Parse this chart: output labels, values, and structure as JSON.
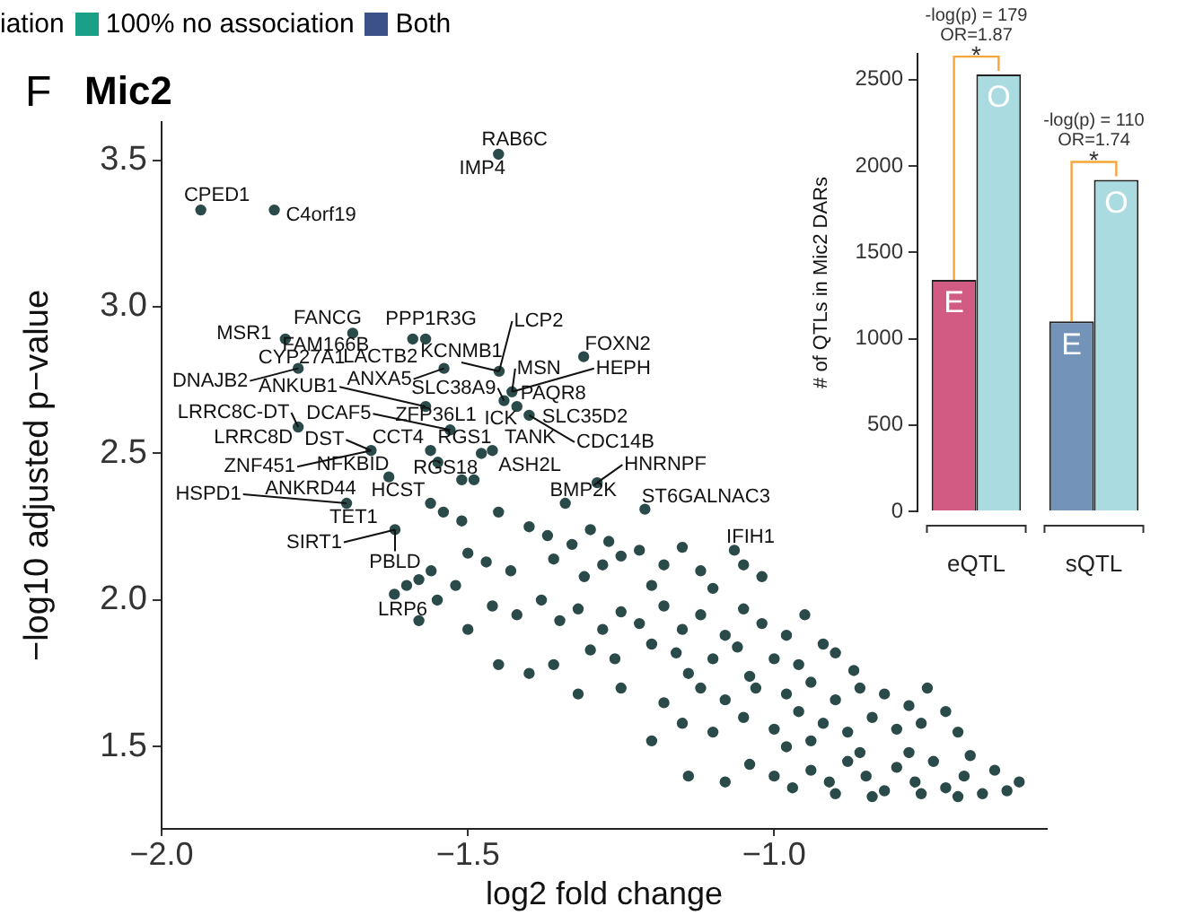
{
  "chart_data": [
    {
      "type": "scatter",
      "title": "Mic2",
      "xlabel": "log2 fold change",
      "ylabel": "−log10 adjusted p−value",
      "color": "#2b4a4a",
      "marker": "circle",
      "grid": false,
      "xlim": [
        -2.0,
        -0.555
      ],
      "ylim": [
        1.22,
        3.63
      ],
      "xticks": [
        {
          "value": -2,
          "label": "−2.0"
        },
        {
          "value": -1.5,
          "label": "−1.5"
        },
        {
          "value": -1,
          "label": "−1.0"
        }
      ],
      "yticks": [
        1.5,
        {
          "value": 2,
          "label": "2.0"
        },
        2.5,
        {
          "value": 3,
          "label": "3.0"
        },
        3.5
      ],
      "x": [
        -1.45,
        -1.936,
        -1.816,
        -1.798,
        -1.688,
        -1.569,
        -1.59,
        -1.777,
        -1.539,
        -1.449,
        -1.428,
        -1.311,
        -1.441,
        -1.569,
        -1.777,
        -1.529,
        -1.42,
        -1.4,
        -1.46,
        -1.561,
        -1.658,
        -1.629,
        -1.478,
        -1.49,
        -1.51,
        -1.549,
        -1.289,
        -1.341,
        -1.561,
        -1.698,
        -1.211,
        -1.619,
        -1.065,
        -1.58,
        -1.54,
        -1.51,
        -1.45,
        -1.4,
        -1.37,
        -1.33,
        -1.3,
        -1.27,
        -1.25,
        -1.22,
        -1.18,
        -1.15,
        -1.12,
        -1.5,
        -1.47,
        -1.43,
        -1.36,
        -1.31,
        -1.28,
        -1.2,
        -1.1,
        -1.05,
        -1.02,
        -1.56,
        -1.6,
        -1.62,
        -1.55,
        -1.58,
        -1.52,
        -1.5,
        -1.46,
        -1.42,
        -1.38,
        -1.35,
        -1.32,
        -1.28,
        -1.25,
        -1.22,
        -1.18,
        -1.15,
        -1.12,
        -1.08,
        -1.05,
        -1.02,
        -0.98,
        -0.95,
        -0.92,
        -1.3,
        -1.26,
        -1.2,
        -1.16,
        -1.1,
        -1.06,
        -1.0,
        -0.96,
        -0.9,
        -0.87,
        -1.45,
        -1.4,
        -1.36,
        -1.14,
        -1.04,
        -1.32,
        -1.25,
        -1.18,
        -1.12,
        -1.08,
        -1.03,
        -0.98,
        -0.94,
        -0.9,
        -0.86,
        -0.82,
        -0.78,
        -0.75,
        -1.15,
        -1.1,
        -1.05,
        -1.0,
        -0.96,
        -0.92,
        -0.88,
        -0.84,
        -0.8,
        -0.76,
        -0.72,
        -0.7,
        -1.2,
        -0.98,
        -0.94,
        -1.14,
        -1.08,
        -1.04,
        -1.0,
        -0.97,
        -0.94,
        -0.91,
        -0.88,
        -0.85,
        -0.82,
        -0.8,
        -0.77,
        -0.74,
        -0.72,
        -0.69,
        -0.66,
        -0.64,
        -0.62,
        -0.6,
        -0.86,
        -0.78,
        -0.68,
        -0.9,
        -0.84,
        -0.76,
        -0.7
      ],
      "values": [
        3.52,
        3.33,
        3.33,
        2.89,
        2.91,
        2.89,
        2.89,
        2.79,
        2.79,
        2.78,
        2.71,
        2.83,
        2.68,
        2.66,
        2.59,
        2.58,
        2.66,
        2.63,
        2.51,
        2.51,
        2.51,
        2.42,
        2.5,
        2.41,
        2.41,
        2.47,
        2.4,
        2.33,
        2.33,
        2.33,
        2.31,
        2.24,
        2.17,
        2.07,
        2.3,
        2.27,
        2.3,
        2.25,
        2.22,
        2.19,
        2.24,
        2.2,
        2.15,
        2.17,
        2.12,
        2.18,
        2.1,
        2.16,
        2.13,
        2.1,
        2.14,
        2.08,
        2.12,
        2.05,
        2.04,
        2.12,
        2.08,
        2.1,
        2.05,
        2.02,
        2.0,
        1.93,
        2.05,
        1.9,
        1.98,
        1.95,
        2.0,
        1.93,
        1.97,
        1.9,
        1.96,
        1.92,
        1.98,
        1.9,
        1.95,
        1.88,
        1.97,
        1.92,
        1.88,
        1.95,
        1.85,
        1.83,
        1.8,
        1.85,
        1.82,
        1.8,
        1.84,
        1.8,
        1.78,
        1.82,
        1.76,
        1.78,
        1.75,
        1.78,
        1.75,
        1.74,
        1.68,
        1.7,
        1.65,
        1.7,
        1.66,
        1.7,
        1.68,
        1.72,
        1.66,
        1.7,
        1.68,
        1.64,
        1.7,
        1.58,
        1.55,
        1.6,
        1.56,
        1.62,
        1.58,
        1.55,
        1.6,
        1.56,
        1.58,
        1.62,
        1.55,
        1.52,
        1.5,
        1.52,
        1.4,
        1.38,
        1.44,
        1.4,
        1.36,
        1.42,
        1.38,
        1.45,
        1.4,
        1.35,
        1.43,
        1.38,
        1.45,
        1.36,
        1.4,
        1.34,
        1.42,
        1.35,
        1.38,
        1.48,
        1.48,
        1.47,
        1.34,
        1.33,
        1.34,
        1.33
      ],
      "annotations": [
        "F",
        "iation",
        "100% no association",
        "Both",
        {
          "text": "RAB6C",
          "x": -1.45,
          "y": 3.52
        },
        {
          "text": "IMP4",
          "x": -1.45,
          "y": 3.52
        },
        {
          "text": "CPED1",
          "x": -1.936,
          "y": 3.33
        },
        {
          "text": "C4orf19",
          "x": -1.816,
          "y": 3.33
        },
        {
          "text": "MSR1",
          "x": -1.798,
          "y": 2.89
        },
        {
          "text": "FANCG",
          "x": -1.688,
          "y": 2.91
        },
        {
          "text": "FAM166B",
          "x": -1.688,
          "y": 2.91
        },
        {
          "text": "PPP1R3G",
          "x": -1.569,
          "y": 2.89
        },
        {
          "text": "LACTB2",
          "x": -1.59,
          "y": 2.89
        },
        {
          "text": "CYP27A1",
          "x": -1.777,
          "y": 2.79
        },
        {
          "text": "DNAJB2",
          "x": -1.777,
          "y": 2.79
        },
        {
          "text": "ANXA5",
          "x": -1.539,
          "y": 2.79
        },
        {
          "text": "LCP2",
          "x": -1.449,
          "y": 2.78
        },
        {
          "text": "KCNMB1",
          "x": -1.449,
          "y": 2.78
        },
        {
          "text": "MSN",
          "x": -1.428,
          "y": 2.71
        },
        {
          "text": "HEPH",
          "x": -1.428,
          "y": 2.71
        },
        {
          "text": "PAQR8",
          "x": -1.428,
          "y": 2.71
        },
        {
          "text": "FOXN2",
          "x": -1.311,
          "y": 2.83
        },
        {
          "text": "SLC38A9",
          "x": -1.441,
          "y": 2.68
        },
        {
          "text": "ANKUB1",
          "x": -1.569,
          "y": 2.66
        },
        {
          "text": "LRRC8C-DT",
          "x": -1.777,
          "y": 2.59
        },
        {
          "text": "LRRC8D",
          "x": -1.777,
          "y": 2.59
        },
        {
          "text": "DCAF5",
          "x": -1.529,
          "y": 2.58
        },
        {
          "text": "ZFP36L1",
          "x": -1.529,
          "y": 2.58
        },
        {
          "text": "ICK",
          "x": -1.42,
          "y": 2.66
        },
        {
          "text": "SLC35D2",
          "x": -1.4,
          "y": 2.63
        },
        {
          "text": "CDC14B",
          "x": -1.4,
          "y": 2.63
        },
        {
          "text": "TANK",
          "x": -1.46,
          "y": 2.51
        },
        {
          "text": "RGS1",
          "x": -1.561,
          "y": 2.51
        },
        {
          "text": "CCT4",
          "x": -1.658,
          "y": 2.51
        },
        {
          "text": "DST",
          "x": -1.658,
          "y": 2.51
        },
        {
          "text": "ZNF451",
          "x": -1.658,
          "y": 2.51
        },
        {
          "text": "NFKBID",
          "x": -1.629,
          "y": 2.42
        },
        {
          "text": "RGS18",
          "x": -1.478,
          "y": 2.5
        },
        {
          "text": "ASH2L",
          "x": -1.49,
          "y": 2.41
        },
        {
          "text": "HNRNPF",
          "x": -1.289,
          "y": 2.4
        },
        {
          "text": "BMP2K",
          "x": -1.341,
          "y": 2.33
        },
        {
          "text": "HCST",
          "x": -1.561,
          "y": 2.33
        },
        {
          "text": "ANKRD44",
          "x": -1.698,
          "y": 2.33
        },
        {
          "text": "HSPD1",
          "x": -1.698,
          "y": 2.33
        },
        {
          "text": "ST6GALNAC3",
          "x": -1.211,
          "y": 2.31
        },
        {
          "text": "TET1",
          "x": -1.619,
          "y": 2.24
        },
        {
          "text": "SIRT1",
          "x": -1.619,
          "y": 2.24
        },
        {
          "text": "PBLD",
          "x": -1.619,
          "y": 2.24
        },
        {
          "text": "IFIH1",
          "x": -1.065,
          "y": 2.17
        },
        {
          "text": "LRP6",
          "x": -1.58,
          "y": 2.07
        }
      ]
    },
    {
      "type": "bar",
      "categories": [
        "eQTL",
        "sQTL"
      ],
      "ylabel": "# of QTLs in Mic2 DARs",
      "grid": false,
      "ylim": [
        0,
        2650
      ],
      "yticks": [
        0,
        500,
        1000,
        1500,
        2000,
        2500
      ],
      "series": [
        {
          "name": "E",
          "colors": [
            "#d15b82",
            "#7394b8"
          ],
          "values": [
            1340,
            1100
          ]
        },
        {
          "name": "O",
          "color": "#aadbe0",
          "values": [
            2530,
            1920
          ]
        }
      ],
      "annotations": [
        "-log(p) = 179",
        "OR=1.87",
        "*",
        "-log(p) = 110",
        "OR=1.74",
        "*"
      ]
    }
  ]
}
